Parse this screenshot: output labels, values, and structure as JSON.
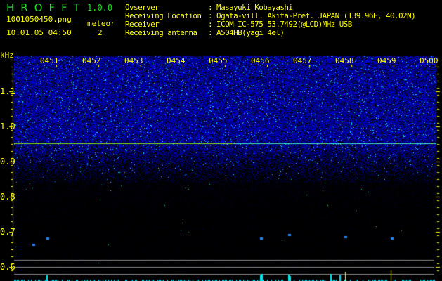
{
  "app": {
    "title": "HROFFT",
    "version": "1.0.0"
  },
  "file": {
    "name": "1001050450.png",
    "datetime": "10.01.05 04:50"
  },
  "meteor": {
    "label": "meteor",
    "count": "2"
  },
  "station": {
    "observer_label": "Ovserver",
    "observer": "Masayuki Kobayashi",
    "location_label": "Receiving Location",
    "location": "Ogata-vill. Akita-Pref. JAPAN (139.96E, 40.02N)",
    "receiver_label": "Receiver",
    "receiver": "ICOM IC-575 53.7492(@LCD)MHz USB",
    "antenna_label": "Receiving antenna",
    "antenna": "A504HB(yagi 4el)"
  },
  "axis": {
    "unit": "kHz",
    "ylabels": [
      "1.1",
      "1.0",
      "0.9",
      "0.8",
      "0.7",
      "0.6"
    ],
    "time_labels": [
      "0451",
      "0452",
      "0453",
      "0454",
      "0455",
      "0456",
      "0457",
      "0458",
      "0459",
      "0500"
    ]
  },
  "colors": {
    "text": "#ffff00",
    "title": "#22dd22",
    "carrier": "#44ee22",
    "noise": "#0022ff",
    "histogram": "#00e5ee"
  },
  "signal": {
    "carrier_khz": 0.95
  }
}
